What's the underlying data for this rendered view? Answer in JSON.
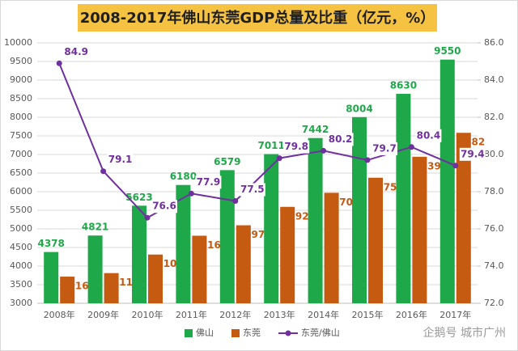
{
  "chart_data": {
    "type": "bar",
    "title": "2008-2017年佛山东莞GDP总量及比重（亿元，%）",
    "categories": [
      "2008年",
      "2009年",
      "2010年",
      "2011年",
      "2012年",
      "2013年",
      "2014年",
      "2015年",
      "2016年",
      "2017年"
    ],
    "series": [
      {
        "name": "佛山",
        "color": "#1fa84a",
        "values": [
          4378,
          4821,
          5623,
          6180,
          6579,
          7011,
          7442,
          8004,
          8630,
          9550
        ]
      },
      {
        "name": "东莞",
        "color": "#c55a11",
        "values": [
          3716,
          3811,
          4310,
          4816,
          5097,
          5592,
          5970,
          6375,
          6939,
          7582
        ]
      },
      {
        "name": "东莞/佛山",
        "color": "#7030a0",
        "type": "line",
        "axis": "y2",
        "values": [
          84.9,
          79.1,
          76.6,
          77.9,
          77.5,
          79.8,
          80.2,
          79.7,
          80.4,
          79.4
        ]
      }
    ],
    "ylim": [
      3000,
      10000
    ],
    "yticks": [
      3000,
      3500,
      4000,
      4500,
      5000,
      5500,
      6000,
      6500,
      7000,
      7500,
      8000,
      8500,
      9000,
      9500,
      10000
    ],
    "y2lim": [
      72,
      86
    ],
    "y2ticks": [
      {
        "value": 72,
        "label": "72.0"
      },
      {
        "value": 74,
        "label": "74.0"
      },
      {
        "value": 76,
        "label": "76.0"
      },
      {
        "value": 78,
        "label": "78.0"
      },
      {
        "value": 80,
        "label": "80.0"
      },
      {
        "value": 82,
        "label": "82.0"
      },
      {
        "value": 84,
        "label": "84.0"
      },
      {
        "value": 86,
        "label": "86.0"
      }
    ],
    "grid": true,
    "legend": "bottom",
    "watermark": "企鹅号 城市广州"
  }
}
